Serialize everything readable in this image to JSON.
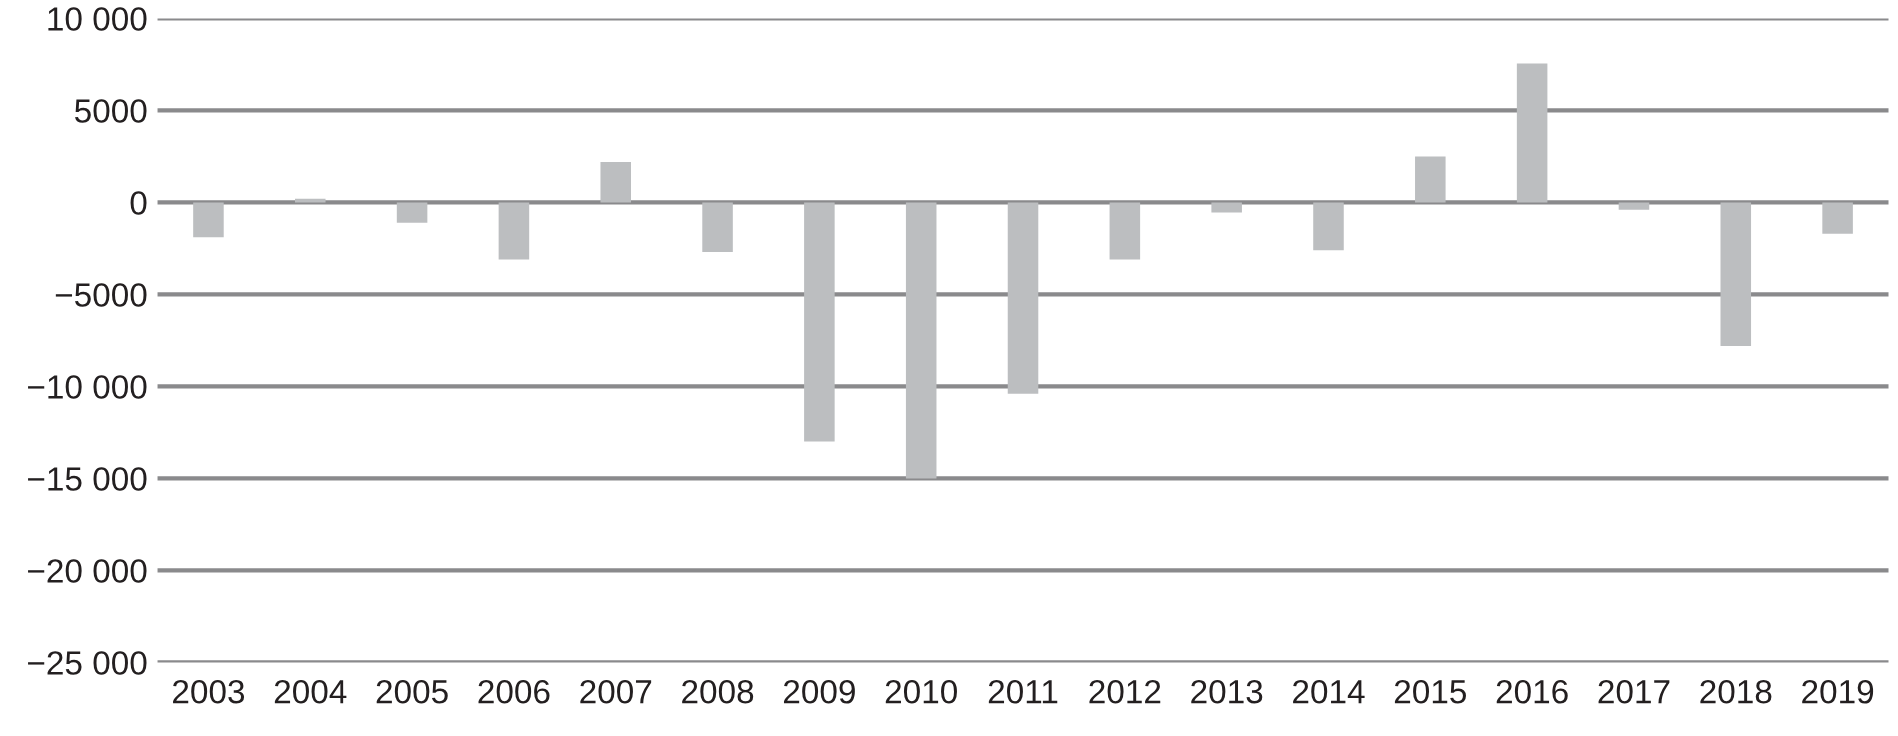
{
  "chart_data": {
    "type": "bar",
    "categories": [
      "2003",
      "2004",
      "2005",
      "2006",
      "2007",
      "2008",
      "2009",
      "2010",
      "2011",
      "2012",
      "2013",
      "2014",
      "2015",
      "2016",
      "2017",
      "2018",
      "2019"
    ],
    "values": [
      -1900,
      200,
      -1100,
      -3100,
      2200,
      -2700,
      -13000,
      -15000,
      -10400,
      -3100,
      -550,
      -2600,
      2500,
      7550,
      -400,
      -7800,
      -1700
    ],
    "color": "#bcbec0",
    "ylim": [
      -25000,
      10000
    ],
    "yticks": [
      {
        "value": 10000,
        "label": "10 000"
      },
      5000,
      0,
      {
        "value": -5000,
        "label": "−5000"
      },
      {
        "value": -10000,
        "label": "−10 000"
      },
      {
        "value": -15000,
        "label": "−15 000"
      },
      {
        "value": -20000,
        "label": "−20 000"
      },
      {
        "value": -25000,
        "label": "−25 000"
      }
    ],
    "grid": "y"
  }
}
